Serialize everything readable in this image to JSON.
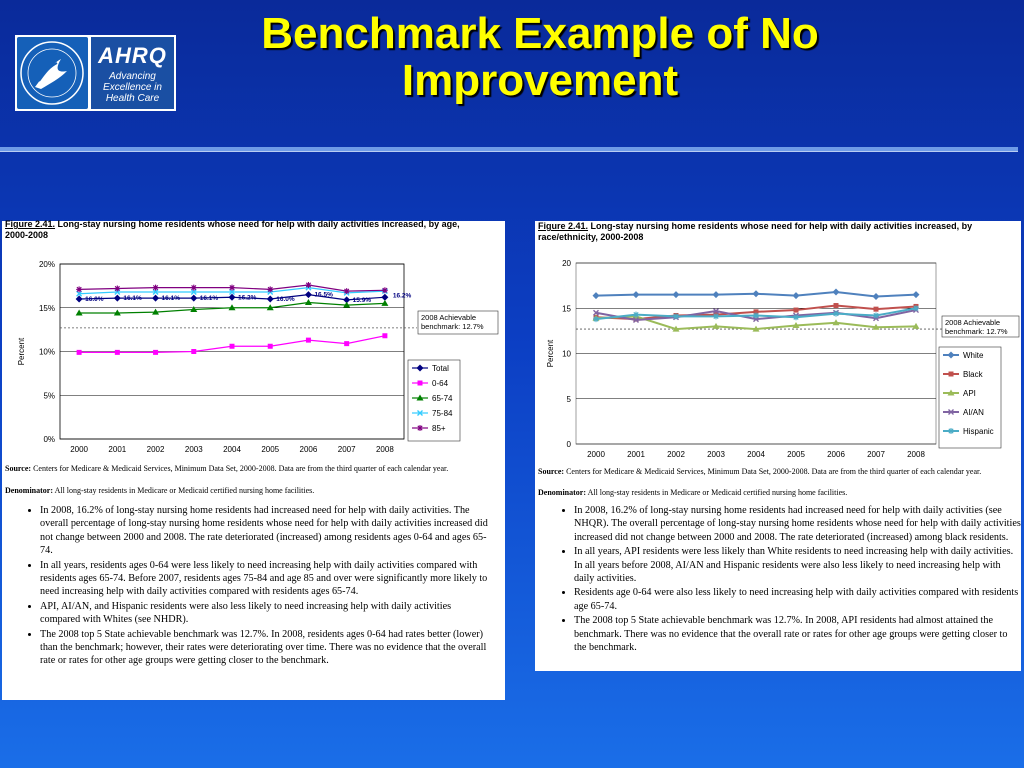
{
  "slide": {
    "title": "Benchmark Example of No Improvement",
    "logo": {
      "ahrq_word": "AHRQ",
      "ahrq_tagline": "Advancing Excellence in Health Care"
    }
  },
  "chart_data": [
    {
      "type": "line",
      "figure_label": "Figure 2.41.",
      "title": "Long-stay nursing home residents whose need for help with daily activities increased, by age, 2000-2008",
      "ylabel": "Percent",
      "xlabel": "",
      "x": [
        "2000",
        "2001",
        "2002",
        "2003",
        "2004",
        "2005",
        "2006",
        "2007",
        "2008"
      ],
      "ylim": [
        0,
        20
      ],
      "yticks": [
        "0%",
        "5%",
        "10%",
        "15%",
        "20%"
      ],
      "series": [
        {
          "name": "Total",
          "color": "#000080",
          "marker": "diamond",
          "values": [
            16.0,
            16.1,
            16.1,
            16.1,
            16.2,
            16.0,
            16.5,
            15.9,
            16.2
          ],
          "labels": [
            "16.0%",
            "16.1%",
            "16.1%",
            "16.1%",
            "16.2%",
            "16.0%",
            "16.5%",
            "15.9%",
            "16.2%"
          ]
        },
        {
          "name": "0-64",
          "color": "#ff00ff",
          "marker": "square",
          "values": [
            9.9,
            9.9,
            9.9,
            10.0,
            10.6,
            10.6,
            11.3,
            10.9,
            11.8
          ]
        },
        {
          "name": "65-74",
          "color": "#008000",
          "marker": "triangle",
          "values": [
            14.4,
            14.4,
            14.5,
            14.8,
            15.0,
            15.0,
            15.6,
            15.3,
            15.5
          ]
        },
        {
          "name": "75-84",
          "color": "#33ccff",
          "marker": "x",
          "values": [
            16.6,
            16.8,
            16.8,
            16.8,
            16.8,
            16.8,
            17.3,
            16.7,
            16.9
          ]
        },
        {
          "name": "85+",
          "color": "#800080",
          "marker": "star",
          "values": [
            17.1,
            17.2,
            17.3,
            17.3,
            17.3,
            17.1,
            17.6,
            16.9,
            17.0
          ]
        }
      ],
      "benchmark": {
        "value": 12.7,
        "label_line1": "2008 Achievable",
        "label_line2": "benchmark: 12.7%"
      },
      "legend_position": "right",
      "grid": true
    },
    {
      "type": "line",
      "figure_label": "Figure 2.41.",
      "title": "Long-stay nursing home residents whose need for help with daily activities increased, by race/ethnicity, 2000-2008",
      "ylabel": "Percent",
      "xlabel": "",
      "x": [
        "2000",
        "2001",
        "2002",
        "2003",
        "2004",
        "2005",
        "2006",
        "2007",
        "2008"
      ],
      "ylim": [
        0,
        20
      ],
      "yticks": [
        "0",
        "5",
        "10",
        "15",
        "20"
      ],
      "series": [
        {
          "name": "White",
          "color": "#4f81bd",
          "marker": "diamond",
          "values": [
            16.4,
            16.5,
            16.5,
            16.5,
            16.6,
            16.4,
            16.8,
            16.3,
            16.5
          ]
        },
        {
          "name": "Black",
          "color": "#c0504d",
          "marker": "square",
          "values": [
            14.0,
            13.8,
            14.2,
            14.3,
            14.6,
            14.8,
            15.3,
            14.9,
            15.2
          ]
        },
        {
          "name": "API",
          "color": "#9bbb59",
          "marker": "triangle",
          "values": [
            13.9,
            14.1,
            12.7,
            13.0,
            12.7,
            13.1,
            13.4,
            12.9,
            13.0
          ]
        },
        {
          "name": "AI/AN",
          "color": "#8064a2",
          "marker": "x",
          "values": [
            14.5,
            13.7,
            14.0,
            14.7,
            13.8,
            14.2,
            14.5,
            13.9,
            14.8
          ]
        },
        {
          "name": "Hispanic",
          "color": "#4bacc6",
          "marker": "star",
          "values": [
            13.8,
            14.3,
            14.1,
            14.1,
            14.2,
            14.0,
            14.4,
            14.2,
            15.0
          ]
        }
      ],
      "benchmark": {
        "value": 12.7,
        "label_line1": "2008 Achievable",
        "label_line2": "benchmark: 12.7%"
      },
      "legend_position": "right",
      "grid": true
    }
  ],
  "left_text": {
    "source_label": "Source:",
    "source": "Centers for Medicare & Medicaid Services, Minimum Data Set, 2000-2008. Data are from the third quarter of each calendar year.",
    "denominator_label": "Denominator:",
    "denominator": "All long-stay residents in Medicare or Medicaid certified nursing home facilities.",
    "bullets": [
      "In 2008, 16.2% of long-stay nursing home residents had increased need for help with daily activities. The overall percentage of long-stay nursing home residents whose need for help with daily activities increased did not change between 2000 and 2008. The rate deteriorated (increased) among residents ages 0-64 and ages 65-74.",
      "In all years, residents ages 0-64 were less likely to need increasing help with daily activities compared with residents ages 65-74. Before 2007, residents ages 75-84 and age 85 and over were significantly more likely to need increasing help with daily activities compared with residents ages 65-74.",
      "API, AI/AN, and Hispanic residents were also less likely to need increasing help with daily activities compared with Whites (see NHDR).",
      "The 2008 top 5 State achievable benchmark was 12.7%. In 2008, residents ages 0-64 had rates better (lower) than the benchmark; however, their rates were deteriorating over time. There was no evidence that the overall rate or rates for other age groups were getting closer to the benchmark."
    ]
  },
  "right_text": {
    "source_label": "Source:",
    "source": "Centers for Medicare & Medicaid Services, Minimum Data Set, 2000-2008. Data are from the third quarter of each calendar year.",
    "denominator_label": "Denominator:",
    "denominator": "All long-stay residents in Medicare or Medicaid certified nursing home facilities.",
    "bullets": [
      "In 2008, 16.2% of long-stay nursing home residents had increased need for help with daily activities (see NHQR). The overall percentage of long-stay nursing home residents whose need for help with daily activities increased did not change between 2000 and 2008. The rate deteriorated (increased) among black residents.",
      "In all years, API residents were less likely than White residents to need increasing help with daily activities. In all years before 2008, AI/AN and Hispanic residents were also less likely to need increasing help with daily activities.",
      "Residents age 0-64 were also less likely to need increasing help with daily activities compared with residents age 65-74.",
      "The 2008 top 5 State achievable benchmark was 12.7%. In 2008, API residents had almost attained the benchmark. There was no evidence that the overall rate or rates for other age groups were getting closer to the benchmark."
    ]
  }
}
